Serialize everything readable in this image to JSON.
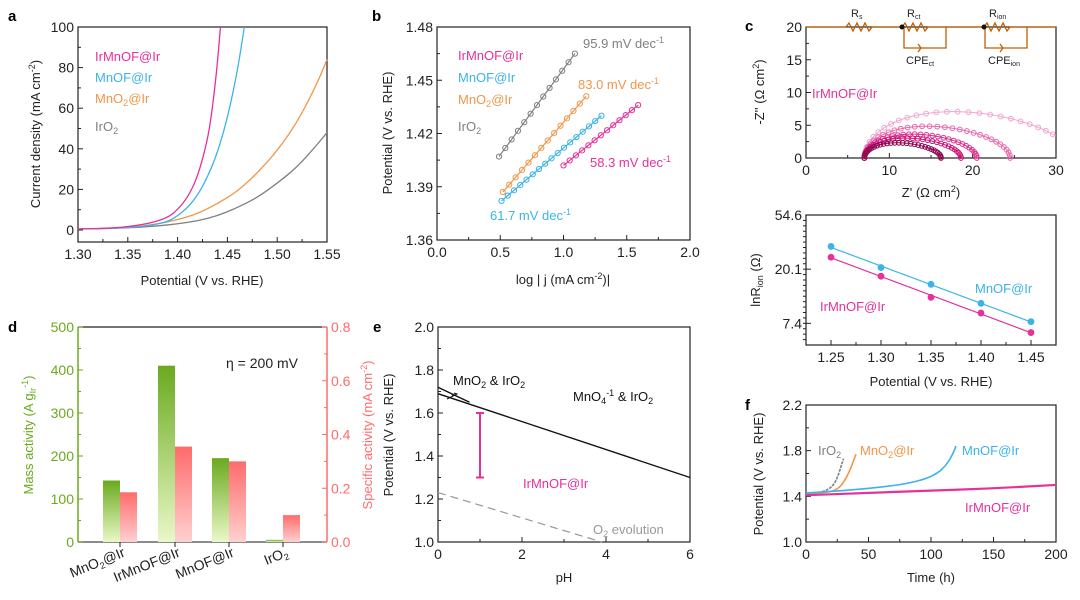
{
  "colors": {
    "IrMnOF@Ir": "#e6309a",
    "MnOF@Ir": "#3bb3e8",
    "MnO2@Ir": "#f0964a",
    "IrO2": "#808080",
    "mass": "#6aaa1e",
    "specific": "#ff6b6b",
    "circuit": "#c06000"
  },
  "chart_data": [
    {
      "panel": "a",
      "type": "line",
      "xlabel": "Potential (V vs. RHE)",
      "ylabel": "Current density (mA cm-2)",
      "xlim": [
        1.3,
        1.55
      ],
      "ylim": [
        -5,
        100
      ],
      "xticks": [
        "1.30",
        "1.35",
        "1.40",
        "1.45",
        "1.50",
        "1.55"
      ],
      "yticks": [
        "0",
        "20",
        "40",
        "60",
        "80",
        "100"
      ],
      "legend": [
        "IrMnOF@Ir",
        "MnOF@Ir",
        "MnO2@Ir",
        "IrO2"
      ],
      "series": [
        {
          "name": "IrMnOF@Ir",
          "x": [
            1.3,
            1.34,
            1.37,
            1.39,
            1.4,
            1.41,
            1.42,
            1.43,
            1.435,
            1.44,
            1.443
          ],
          "y": [
            0.5,
            1,
            3,
            6,
            10,
            16,
            26,
            44,
            60,
            82,
            100
          ]
        },
        {
          "name": "MnOF@Ir",
          "x": [
            1.3,
            1.34,
            1.37,
            1.39,
            1.4,
            1.41,
            1.42,
            1.43,
            1.44,
            1.45,
            1.46,
            1.467
          ],
          "y": [
            0.5,
            0.8,
            2,
            4,
            7,
            11,
            17,
            26,
            38,
            55,
            78,
            100
          ]
        },
        {
          "name": "MnO2@Ir",
          "x": [
            1.3,
            1.35,
            1.38,
            1.4,
            1.42,
            1.44,
            1.46,
            1.48,
            1.5,
            1.52,
            1.54,
            1.55
          ],
          "y": [
            0.5,
            1,
            3,
            5,
            8,
            13,
            19,
            28,
            39,
            53,
            72,
            84
          ]
        },
        {
          "name": "IrO2",
          "x": [
            1.3,
            1.35,
            1.38,
            1.4,
            1.42,
            1.44,
            1.46,
            1.48,
            1.5,
            1.52,
            1.54,
            1.55
          ],
          "y": [
            0.5,
            1,
            2,
            3,
            4.5,
            7,
            11,
            16,
            23,
            31,
            42,
            48
          ]
        }
      ]
    },
    {
      "panel": "b",
      "type": "scatter",
      "xlabel": "log | j (mA cm-2)|",
      "ylabel": "Potential (V vs. RHE)",
      "xlim": [
        0.0,
        2.0
      ],
      "ylim": [
        1.36,
        1.48
      ],
      "xticks": [
        "0.0",
        "0.5",
        "1.0",
        "1.5",
        "2.0"
      ],
      "yticks": [
        "1.36",
        "1.39",
        "1.42",
        "1.45",
        "1.48"
      ],
      "legend": [
        "IrMnOF@Ir",
        "MnOF@Ir",
        "MnO2@Ir",
        "IrO2"
      ],
      "series": [
        {
          "name": "IrO2",
          "x_range": [
            0.49,
            1.09
          ],
          "y_range": [
            1.407,
            1.465
          ],
          "slope_label": "95.9 mV dec-1"
        },
        {
          "name": "MnO2@Ir",
          "x_range": [
            0.52,
            1.18
          ],
          "y_range": [
            1.387,
            1.441
          ],
          "slope_label": "83.0 mV dec-1"
        },
        {
          "name": "MnOF@Ir",
          "x_range": [
            0.51,
            1.3
          ],
          "y_range": [
            1.382,
            1.43
          ],
          "slope_label": "61.7 mV dec-1"
        },
        {
          "name": "IrMnOF@Ir",
          "x_range": [
            1.0,
            1.59
          ],
          "y_range": [
            1.402,
            1.436
          ],
          "slope_label": "58.3 mV dec-1"
        }
      ]
    },
    {
      "panel": "c-top",
      "type": "scatter",
      "xlabel": "Z' (Ω cm2)",
      "ylabel": "-Z'' (Ω cm2)",
      "xlim": [
        0,
        30
      ],
      "ylim": [
        0,
        20
      ],
      "xticks": [
        "0",
        "10",
        "20",
        "30"
      ],
      "yticks": [
        "0",
        "5",
        "10",
        "15",
        "20"
      ],
      "annotation": "IrMnOF@Ir",
      "circuit": {
        "elements": [
          "Rs",
          "Rct",
          "CPEct",
          "Rion",
          "CPEion"
        ]
      },
      "series": [
        {
          "name": "arc1",
          "start": 7,
          "end": 16.2,
          "peak": 2.3,
          "shade": "#8c0a50"
        },
        {
          "name": "arc2",
          "start": 7,
          "end": 18.6,
          "peak": 3.0,
          "shade": "#c81478"
        },
        {
          "name": "arc3",
          "start": 7,
          "end": 20.5,
          "peak": 3.6,
          "shade": "#e02e90"
        },
        {
          "name": "arc4",
          "start": 7,
          "end": 24.5,
          "peak": 4.8,
          "shade": "#e868ad"
        },
        {
          "name": "arc5",
          "start": 7,
          "end": 32,
          "peak": 7.0,
          "shade": "#f2a5cf"
        }
      ]
    },
    {
      "panel": "c-bottom",
      "type": "scatter",
      "xlabel": "Potential (V vs. RHE)",
      "ylabel": "lnRion (Ω)",
      "xlim": [
        1.225,
        1.475
      ],
      "yticks": [
        "7.4",
        "20.1",
        "54.6"
      ],
      "ytick_ln": [
        2,
        3,
        4
      ],
      "ylim_ln": [
        1.6,
        4.0
      ],
      "xticks": [
        "1.25",
        "1.30",
        "1.35",
        "1.40",
        "1.45"
      ],
      "series": [
        {
          "name": "MnOF@Ir",
          "x": [
            1.25,
            1.3,
            1.35,
            1.4,
            1.45
          ],
          "ln_y": [
            3.42,
            3.03,
            2.72,
            2.37,
            2.03
          ]
        },
        {
          "name": "IrMnOF@Ir",
          "x": [
            1.25,
            1.3,
            1.35,
            1.4,
            1.45
          ],
          "ln_y": [
            3.22,
            2.87,
            2.48,
            2.19,
            1.83
          ]
        }
      ]
    },
    {
      "panel": "d",
      "type": "bar",
      "categories": [
        "MnO2@Ir",
        "IrMnOF@Ir",
        "MnOF@Ir",
        "IrO2"
      ],
      "series": [
        {
          "name": "Mass activity",
          "axis": "left",
          "values": [
            143,
            410,
            195,
            5
          ]
        },
        {
          "name": "Specific activity",
          "axis": "right",
          "values": [
            0.185,
            0.355,
            0.3,
            0.1
          ]
        }
      ],
      "ylabel_left": "Mass activity (A gIr-1)",
      "ylabel_right": "Specific activity (mA cm-2)",
      "ylim_left": [
        0,
        500
      ],
      "ylim_right": [
        0,
        0.8
      ],
      "yticks_left": [
        "0",
        "100",
        "200",
        "300",
        "400",
        "500"
      ],
      "yticks_right": [
        "0.0",
        "0.2",
        "0.4",
        "0.6",
        "0.8"
      ],
      "annotation": "η = 200 mV"
    },
    {
      "panel": "e",
      "type": "line",
      "xlabel": "pH",
      "ylabel": "Potential (V vs. RHE)",
      "xlim": [
        0,
        6
      ],
      "ylim": [
        1.0,
        2.0
      ],
      "xticks": [
        "0",
        "2",
        "4",
        "6"
      ],
      "yticks": [
        "1.0",
        "1.2",
        "1.4",
        "1.6",
        "1.8",
        "2.0"
      ],
      "series": [
        {
          "name": "MnO4-/MnO2 boundary",
          "x": [
            0,
            6
          ],
          "y": [
            1.69,
            1.3
          ]
        },
        {
          "name": "MnO2 & IrO2 short boundary",
          "x": [
            0,
            0.75
          ],
          "y": [
            1.72,
            1.65
          ]
        },
        {
          "name": "O2 evolution",
          "x": [
            0,
            3.9
          ],
          "y": [
            1.23,
            1.0
          ],
          "dashed": true
        }
      ],
      "errorbar": {
        "name": "IrMnOF@Ir",
        "x": 1,
        "ymin": 1.3,
        "ymax": 1.6
      },
      "labels": {
        "region_low": "MnO2 & IrO2",
        "region_high": "MnO4-1 & IrO2",
        "o2": "O2 evolution",
        "sample": "IrMnOF@Ir"
      }
    },
    {
      "panel": "f",
      "type": "line",
      "xlabel": "Time (h)",
      "ylabel": "Potential (V vs. RHE)",
      "xlim": [
        0,
        200
      ],
      "ylim": [
        1.0,
        2.2
      ],
      "xticks": [
        "0",
        "50",
        "100",
        "150",
        "200"
      ],
      "yticks": [
        "1.0",
        "1.4",
        "1.8",
        "2.2"
      ],
      "series": [
        {
          "name": "IrO2",
          "x": [
            0,
            10,
            18,
            22,
            25,
            28,
            30
          ],
          "y": [
            1.42,
            1.43,
            1.46,
            1.5,
            1.56,
            1.66,
            1.73
          ]
        },
        {
          "name": "MnO2@Ir",
          "x": [
            0,
            10,
            20,
            26,
            30,
            34,
            37,
            40
          ],
          "y": [
            1.42,
            1.43,
            1.44,
            1.47,
            1.52,
            1.6,
            1.68,
            1.77
          ]
        },
        {
          "name": "MnOF@Ir",
          "x": [
            0,
            30,
            60,
            80,
            95,
            105,
            112,
            117,
            120
          ],
          "y": [
            1.43,
            1.45,
            1.48,
            1.51,
            1.55,
            1.6,
            1.67,
            1.76,
            1.84
          ]
        },
        {
          "name": "IrMnOF@Ir",
          "x": [
            0,
            50,
            100,
            150,
            200
          ],
          "y": [
            1.41,
            1.43,
            1.45,
            1.47,
            1.5
          ]
        }
      ]
    }
  ],
  "labels": {
    "panel_a": "a",
    "panel_b": "b",
    "panel_c": "c",
    "panel_d": "d",
    "panel_e": "e",
    "panel_f": "f",
    "a_ylabel": "Current density (mA cm",
    "a_ylabel_sup": "-2",
    "a_ylabel_end": ")",
    "a_xlabel": "Potential (V vs. RHE)",
    "b_ylabel": "Potential (V vs. RHE)",
    "b_xlabel_pre": "log | j (mA cm",
    "b_xlabel_sup": "-2",
    "b_xlabel_end": ")|",
    "b_slope_IrO2": "95.9 mV dec",
    "b_slope_MnO2": "83.0 mV dec",
    "b_slope_MnOF": "61.7 mV dec",
    "b_slope_IrMnOF": "58.3 mV dec",
    "sup_m1": "-1",
    "legend_irmnof": "IrMnOF@Ir",
    "legend_mnof": "MnOF@Ir",
    "legend_mno2_pre": "MnO",
    "legend_mno2_post": "@Ir",
    "legend_iro2": "IrO",
    "sub2": "2",
    "c_ylabel": "-Z'' (Ω cm",
    "c_xlabel": "Z' (Ω cm",
    "sup2": "2",
    "close_paren": ")",
    "c_sample": "IrMnOF@Ir",
    "circ_R": "R",
    "circ_s": "s",
    "circ_ct": "ct",
    "circ_ion": "ion",
    "circ_CPE": "CPE",
    "c2_ylabel": "lnR",
    "c2_ylabel_sub": "ion",
    "c2_ylabel_end": " (Ω)",
    "c2_xlabel": "Potential (V vs. RHE)",
    "c2_mnof": "MnOF@Ir",
    "c2_irmnof": "IrMnOF@Ir",
    "d_left_label": "Mass activity (A g",
    "d_left_sub": "Ir",
    "d_left_sup": "-1",
    "d_right_label": "Specific activity (mA cm",
    "d_right_sup": "-2",
    "d_eta": "η = 200 mV",
    "e_ylabel": "Potential (V vs. RHE)",
    "e_xlabel": "pH",
    "e_low_pre": "MnO",
    "e_low_mid": " & IrO",
    "e_high_pre": "MnO",
    "e_high_sub": "4",
    "e_high_sup": "-1",
    "e_high_mid": " & IrO",
    "e_o2_pre": "O",
    "e_o2_post": " evolution",
    "e_sample": "IrMnOF@Ir",
    "f_ylabel": "Potential (V vs. RHE)",
    "f_xlabel": "Time (h)",
    "f_iro2": "IrO",
    "f_mno2_pre": "MnO",
    "f_mno2_post": "@Ir",
    "f_mnof": "MnOF@Ir",
    "f_irmnof": "IrMnOF@Ir"
  }
}
